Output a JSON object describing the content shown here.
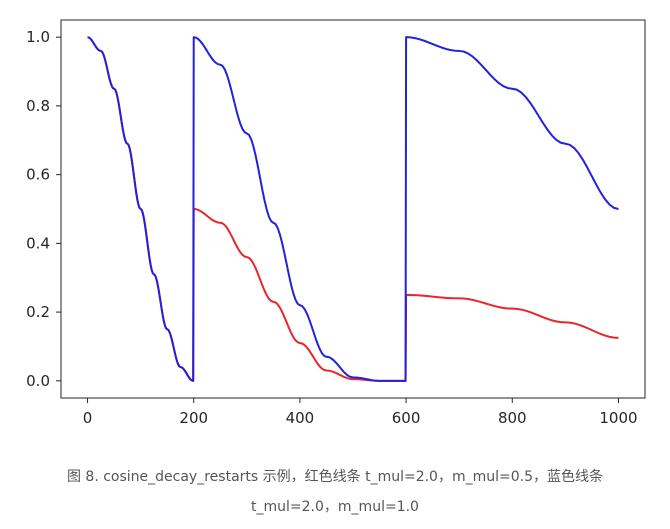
{
  "chart_data": {
    "type": "line",
    "title": "",
    "xlabel": "",
    "ylabel": "",
    "xlim": [
      -50,
      1050
    ],
    "ylim": [
      -0.05,
      1.05
    ],
    "x_ticks": [
      0,
      200,
      400,
      600,
      800,
      1000
    ],
    "y_ticks": [
      0.0,
      0.2,
      0.4,
      0.6,
      0.8,
      1.0
    ],
    "x_tick_labels": [
      "0",
      "200",
      "400",
      "600",
      "800",
      "1000"
    ],
    "y_tick_labels": [
      "0.0",
      "0.2",
      "0.4",
      "0.6",
      "0.8",
      "1.0"
    ],
    "grid": false,
    "series": [
      {
        "color": "#e8262b",
        "x": [
          0,
          25,
          50,
          75,
          100,
          125,
          150,
          175,
          199,
          200,
          250,
          300,
          350,
          400,
          450,
          500,
          550,
          599,
          600,
          700,
          800,
          900,
          1000
        ],
        "values": [
          1.0,
          0.96,
          0.85,
          0.69,
          0.5,
          0.31,
          0.15,
          0.04,
          0.0,
          0.5,
          0.46,
          0.36,
          0.23,
          0.11,
          0.03,
          0.005,
          0.0,
          0.0,
          0.25,
          0.24,
          0.21,
          0.17,
          0.125
        ]
      },
      {
        "color": "#2222dd",
        "x": [
          0,
          25,
          50,
          75,
          100,
          125,
          150,
          175,
          199,
          200,
          250,
          300,
          350,
          400,
          450,
          500,
          550,
          599,
          600,
          700,
          800,
          900,
          1000
        ],
        "values": [
          1.0,
          0.96,
          0.85,
          0.69,
          0.5,
          0.31,
          0.15,
          0.04,
          0.0,
          1.0,
          0.92,
          0.72,
          0.46,
          0.22,
          0.07,
          0.01,
          0.0,
          0.0,
          1.0,
          0.96,
          0.85,
          0.69,
          0.5
        ]
      }
    ]
  },
  "caption": {
    "line1": "图 8. cosine_decay_restarts 示例，红色线条 t_mul=2.0，m_mul=0.5，蓝色线条",
    "line2": "t_mul=2.0，m_mul=1.0"
  }
}
